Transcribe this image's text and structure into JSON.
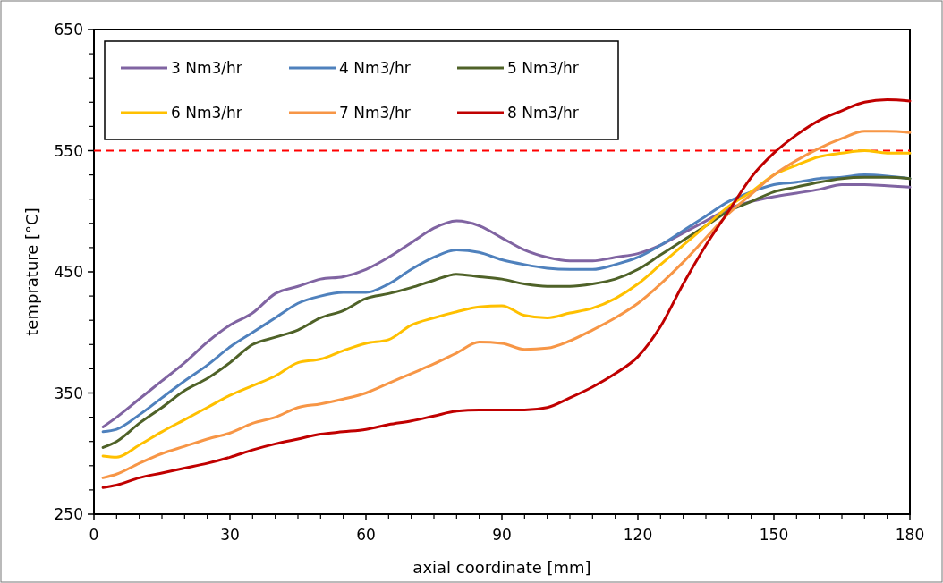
{
  "chart_data": {
    "type": "line",
    "xlabel": "axial coordinate [mm]",
    "ylabel": "temprature [°C]",
    "x": [
      2,
      5,
      10,
      15,
      20,
      25,
      30,
      35,
      40,
      45,
      50,
      55,
      60,
      65,
      70,
      75,
      80,
      85,
      90,
      95,
      100,
      105,
      110,
      115,
      120,
      125,
      130,
      135,
      140,
      145,
      150,
      155,
      160,
      165,
      170,
      175,
      180
    ],
    "series": [
      {
        "name": "3 Nm3/hr",
        "color": "#8064a2",
        "values": [
          322,
          330,
          345,
          360,
          375,
          392,
          406,
          416,
          432,
          438,
          444,
          446,
          452,
          462,
          474,
          486,
          492,
          488,
          478,
          468,
          462,
          459,
          459,
          462,
          465,
          472,
          482,
          492,
          502,
          508,
          512,
          515,
          518,
          522,
          522,
          521,
          520
        ]
      },
      {
        "name": "4 Nm3/hr",
        "color": "#4f81bd",
        "values": [
          318,
          320,
          332,
          346,
          360,
          373,
          388,
          400,
          412,
          424,
          430,
          433,
          433,
          440,
          452,
          462,
          468,
          466,
          460,
          456,
          453,
          452,
          452,
          456,
          462,
          472,
          484,
          496,
          508,
          516,
          522,
          524,
          527,
          528,
          530,
          529,
          527
        ]
      },
      {
        "name": "5 Nm3/hr",
        "color": "#4f6228",
        "values": [
          305,
          310,
          325,
          338,
          352,
          362,
          375,
          390,
          396,
          402,
          412,
          418,
          428,
          432,
          437,
          443,
          448,
          446,
          444,
          440,
          438,
          438,
          440,
          444,
          452,
          464,
          476,
          488,
          500,
          508,
          516,
          520,
          524,
          527,
          528,
          528,
          527
        ]
      },
      {
        "name": "6 Nm3/hr",
        "color": "#ffc000",
        "values": [
          298,
          297,
          307,
          318,
          328,
          338,
          348,
          356,
          364,
          375,
          378,
          385,
          391,
          394,
          406,
          412,
          417,
          421,
          422,
          414,
          412,
          416,
          420,
          428,
          440,
          456,
          472,
          488,
          504,
          516,
          530,
          538,
          545,
          548,
          550,
          548,
          548
        ]
      },
      {
        "name": "7 Nm3/hr",
        "color": "#f79646",
        "values": [
          280,
          283,
          292,
          300,
          306,
          312,
          317,
          325,
          330,
          338,
          341,
          345,
          350,
          358,
          366,
          374,
          383,
          392,
          391,
          386,
          387,
          393,
          402,
          412,
          424,
          440,
          458,
          478,
          498,
          514,
          530,
          542,
          552,
          560,
          566,
          566,
          565
        ]
      },
      {
        "name": "8 Nm3/hr",
        "color": "#c00000",
        "values": [
          272,
          274,
          280,
          284,
          288,
          292,
          297,
          303,
          308,
          312,
          316,
          318,
          320,
          324,
          327,
          331,
          335,
          336,
          336,
          336,
          338,
          346,
          355,
          366,
          380,
          405,
          440,
          472,
          500,
          528,
          548,
          563,
          575,
          583,
          590,
          592,
          591
        ]
      }
    ],
    "xlim": [
      0,
      180
    ],
    "xticks": [
      0,
      30,
      60,
      90,
      120,
      150,
      180
    ],
    "ylim": [
      250,
      650
    ],
    "yticks": [
      250,
      350,
      450,
      550,
      650
    ],
    "ref_lines": [
      {
        "axis": "y",
        "value": 550,
        "color": "#ff0000",
        "line_style": "dashed"
      }
    ],
    "grid": false,
    "legend": "top left",
    "line_style": "solid"
  }
}
